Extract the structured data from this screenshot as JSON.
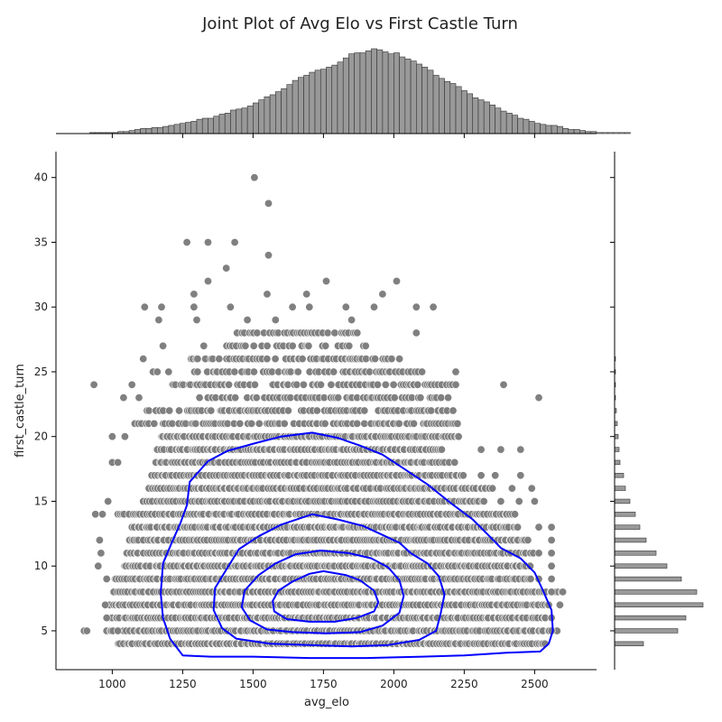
{
  "chart_data": {
    "type": "scatter",
    "title": "Joint Plot of Avg Elo vs First Castle Turn",
    "xlabel": "avg_elo",
    "ylabel": "first_castle_turn",
    "xlim": [
      800,
      2720
    ],
    "ylim": [
      2,
      42
    ],
    "x_ticks": [
      1000,
      1250,
      1500,
      1750,
      2000,
      2250,
      2500
    ],
    "y_ticks": [
      5,
      10,
      15,
      20,
      25,
      30,
      35,
      40
    ],
    "grid": false,
    "legend": "none",
    "colors": {
      "points": "#808080",
      "kde": "#0000ff",
      "hist_fill": "#999999",
      "hist_edge": "#333333"
    },
    "outliers": [
      {
        "x": 1505,
        "y": 40
      },
      {
        "x": 1555,
        "y": 38
      },
      {
        "x": 1265,
        "y": 35
      },
      {
        "x": 1340,
        "y": 35
      },
      {
        "x": 1435,
        "y": 35
      },
      {
        "x": 1555,
        "y": 34
      },
      {
        "x": 1405,
        "y": 33
      },
      {
        "x": 1340,
        "y": 32
      },
      {
        "x": 1760,
        "y": 32
      },
      {
        "x": 2010,
        "y": 32
      },
      {
        "x": 1290,
        "y": 31
      },
      {
        "x": 1550,
        "y": 31
      },
      {
        "x": 1690,
        "y": 31
      },
      {
        "x": 1960,
        "y": 31
      },
      {
        "x": 1115,
        "y": 30
      },
      {
        "x": 1175,
        "y": 30
      },
      {
        "x": 1290,
        "y": 30
      },
      {
        "x": 1420,
        "y": 30
      },
      {
        "x": 1640,
        "y": 30
      },
      {
        "x": 1700,
        "y": 30
      },
      {
        "x": 1830,
        "y": 30
      },
      {
        "x": 1930,
        "y": 30
      },
      {
        "x": 2080,
        "y": 30
      },
      {
        "x": 2140,
        "y": 30
      },
      {
        "x": 1165,
        "y": 29
      },
      {
        "x": 1300,
        "y": 29
      },
      {
        "x": 1480,
        "y": 29
      },
      {
        "x": 1580,
        "y": 29
      },
      {
        "x": 1850,
        "y": 29
      },
      {
        "x": 1180,
        "y": 27
      },
      {
        "x": 1325,
        "y": 27
      },
      {
        "x": 2080,
        "y": 28
      },
      {
        "x": 1110,
        "y": 26
      },
      {
        "x": 1145,
        "y": 25
      },
      {
        "x": 1200,
        "y": 25
      },
      {
        "x": 2220,
        "y": 25
      },
      {
        "x": 935,
        "y": 24
      },
      {
        "x": 1070,
        "y": 24
      },
      {
        "x": 2390,
        "y": 24
      },
      {
        "x": 2515,
        "y": 23
      },
      {
        "x": 1040,
        "y": 23
      },
      {
        "x": 1095,
        "y": 23
      },
      {
        "x": 1000,
        "y": 20
      },
      {
        "x": 1045,
        "y": 20
      },
      {
        "x": 1000,
        "y": 18
      },
      {
        "x": 1020,
        "y": 18
      },
      {
        "x": 2450,
        "y": 19
      },
      {
        "x": 2310,
        "y": 19
      },
      {
        "x": 2380,
        "y": 19
      },
      {
        "x": 2310,
        "y": 17
      },
      {
        "x": 2360,
        "y": 17
      },
      {
        "x": 2450,
        "y": 17
      },
      {
        "x": 2350,
        "y": 16
      },
      {
        "x": 2420,
        "y": 16
      },
      {
        "x": 2490,
        "y": 16
      },
      {
        "x": 2380,
        "y": 15
      },
      {
        "x": 2445,
        "y": 15
      },
      {
        "x": 2500,
        "y": 15
      },
      {
        "x": 985,
        "y": 15
      },
      {
        "x": 1160,
        "y": 25
      },
      {
        "x": 2560,
        "y": 13
      },
      {
        "x": 2560,
        "y": 12
      },
      {
        "x": 2560,
        "y": 11
      },
      {
        "x": 2560,
        "y": 10
      },
      {
        "x": 2560,
        "y": 9
      },
      {
        "x": 2560,
        "y": 8
      },
      {
        "x": 2560,
        "y": 6
      },
      {
        "x": 2560,
        "y": 5
      },
      {
        "x": 2590,
        "y": 7
      },
      {
        "x": 2515,
        "y": 9
      },
      {
        "x": 2515,
        "y": 11
      },
      {
        "x": 2515,
        "y": 13
      },
      {
        "x": 900,
        "y": 5
      },
      {
        "x": 910,
        "y": 5
      },
      {
        "x": 955,
        "y": 12
      },
      {
        "x": 960,
        "y": 11
      },
      {
        "x": 950,
        "y": 10
      },
      {
        "x": 980,
        "y": 9
      },
      {
        "x": 975,
        "y": 7
      },
      {
        "x": 980,
        "y": 6
      },
      {
        "x": 1020,
        "y": 5
      },
      {
        "x": 940,
        "y": 14
      },
      {
        "x": 965,
        "y": 14
      }
    ],
    "rows": [
      {
        "y": 4,
        "x_min": 1020,
        "x_max": 2540
      },
      {
        "y": 5,
        "x_min": 980,
        "x_max": 2580
      },
      {
        "y": 6,
        "x_min": 985,
        "x_max": 2540
      },
      {
        "y": 7,
        "x_min": 985,
        "x_max": 2550
      },
      {
        "y": 8,
        "x_min": 1005,
        "x_max": 2600
      },
      {
        "y": 9,
        "x_min": 1010,
        "x_max": 2490
      },
      {
        "y": 10,
        "x_min": 1040,
        "x_max": 2490
      },
      {
        "y": 11,
        "x_min": 1050,
        "x_max": 2500
      },
      {
        "y": 12,
        "x_min": 1060,
        "x_max": 2480
      },
      {
        "y": 13,
        "x_min": 1070,
        "x_max": 2440
      },
      {
        "y": 14,
        "x_min": 1020,
        "x_max": 2430
      },
      {
        "y": 15,
        "x_min": 1110,
        "x_max": 2320
      },
      {
        "y": 16,
        "x_min": 1130,
        "x_max": 2340
      },
      {
        "y": 17,
        "x_min": 1140,
        "x_max": 2250
      },
      {
        "y": 18,
        "x_min": 1150,
        "x_max": 2220
      },
      {
        "y": 19,
        "x_min": 1160,
        "x_max": 2170
      },
      {
        "y": 20,
        "x_min": 1170,
        "x_max": 2230
      },
      {
        "y": 21,
        "x_min": 1080,
        "x_max": 2230
      },
      {
        "y": 22,
        "x_min": 1120,
        "x_max": 2220
      },
      {
        "y": 23,
        "x_min": 1260,
        "x_max": 2200
      },
      {
        "y": 24,
        "x_min": 1210,
        "x_max": 2220
      },
      {
        "y": 25,
        "x_min": 1290,
        "x_max": 2100
      },
      {
        "y": 26,
        "x_min": 1280,
        "x_max": 2020
      },
      {
        "y": 27,
        "x_min": 1380,
        "x_max": 1900
      },
      {
        "y": 28,
        "x_min": 1440,
        "x_max": 1870
      }
    ],
    "kde_contours": [
      [
        [
          1710,
          20.3
        ],
        [
          1800,
          19.9
        ],
        [
          1880,
          19.3
        ],
        [
          1960,
          18.6
        ],
        [
          2030,
          17.6
        ],
        [
          2120,
          16.3
        ],
        [
          2200,
          14.9
        ],
        [
          2280,
          13.6
        ],
        [
          2340,
          12.3
        ],
        [
          2380,
          11.4
        ],
        [
          2450,
          10.6
        ],
        [
          2500,
          9.5
        ],
        [
          2530,
          8.1
        ],
        [
          2560,
          6.6
        ],
        [
          2565,
          5.0
        ],
        [
          2550,
          4.0
        ],
        [
          2520,
          3.4
        ],
        [
          2400,
          3.3
        ],
        [
          2250,
          3.1
        ],
        [
          2100,
          3.0
        ],
        [
          1900,
          2.9
        ],
        [
          1700,
          2.9
        ],
        [
          1500,
          3.0
        ],
        [
          1350,
          3.0
        ],
        [
          1250,
          3.1
        ],
        [
          1205,
          4.4
        ],
        [
          1180,
          6.0
        ],
        [
          1172,
          7.9
        ],
        [
          1180,
          10.2
        ],
        [
          1215,
          12.0
        ],
        [
          1240,
          13.2
        ],
        [
          1265,
          14.7
        ],
        [
          1275,
          16.5
        ],
        [
          1340,
          18.1
        ],
        [
          1410,
          18.9
        ],
        [
          1510,
          19.5
        ],
        [
          1600,
          20.0
        ],
        [
          1710,
          20.3
        ]
      ],
      [
        [
          1710,
          14.0
        ],
        [
          1800,
          13.6
        ],
        [
          1890,
          13.1
        ],
        [
          1950,
          12.5
        ],
        [
          2020,
          11.8
        ],
        [
          2060,
          11.0
        ],
        [
          2120,
          10.2
        ],
        [
          2160,
          9.2
        ],
        [
          2180,
          7.8
        ],
        [
          2165,
          6.2
        ],
        [
          2150,
          5.0
        ],
        [
          2090,
          4.3
        ],
        [
          1980,
          3.9
        ],
        [
          1850,
          3.8
        ],
        [
          1700,
          3.9
        ],
        [
          1560,
          4.0
        ],
        [
          1440,
          4.4
        ],
        [
          1390,
          5.2
        ],
        [
          1360,
          6.6
        ],
        [
          1365,
          8.3
        ],
        [
          1410,
          9.9
        ],
        [
          1450,
          11.3
        ],
        [
          1520,
          12.3
        ],
        [
          1600,
          13.2
        ],
        [
          1710,
          14.0
        ]
      ],
      [
        [
          1740,
          11.2
        ],
        [
          1840,
          11.0
        ],
        [
          1920,
          10.6
        ],
        [
          1980,
          9.9
        ],
        [
          2020,
          8.9
        ],
        [
          2035,
          7.7
        ],
        [
          2020,
          6.4
        ],
        [
          1960,
          5.4
        ],
        [
          1880,
          4.9
        ],
        [
          1760,
          4.8
        ],
        [
          1640,
          4.9
        ],
        [
          1550,
          5.1
        ],
        [
          1490,
          5.8
        ],
        [
          1460,
          6.8
        ],
        [
          1470,
          8.1
        ],
        [
          1520,
          9.3
        ],
        [
          1580,
          10.2
        ],
        [
          1650,
          10.9
        ],
        [
          1740,
          11.2
        ]
      ],
      [
        [
          1750,
          9.6
        ],
        [
          1830,
          9.3
        ],
        [
          1880,
          8.9
        ],
        [
          1930,
          8.1
        ],
        [
          1945,
          7.2
        ],
        [
          1930,
          6.5
        ],
        [
          1870,
          6.0
        ],
        [
          1790,
          5.7
        ],
        [
          1700,
          5.7
        ],
        [
          1620,
          5.9
        ],
        [
          1575,
          6.5
        ],
        [
          1570,
          7.3
        ],
        [
          1590,
          8.1
        ],
        [
          1640,
          8.8
        ],
        [
          1700,
          9.4
        ],
        [
          1750,
          9.6
        ]
      ]
    ],
    "hist_x": {
      "bin_start": 920,
      "bin_width": 20,
      "counts": [
        1,
        1,
        1,
        1,
        1,
        2,
        2,
        3,
        4,
        5,
        5,
        6,
        6,
        7,
        8,
        9,
        10,
        11,
        12,
        14,
        15,
        15,
        17,
        19,
        20,
        23,
        24,
        25,
        27,
        30,
        33,
        36,
        38,
        41,
        44,
        48,
        52,
        55,
        57,
        60,
        62,
        63,
        65,
        67,
        70,
        74,
        78,
        79,
        79,
        81,
        83,
        82,
        80,
        78,
        79,
        75,
        73,
        71,
        68,
        65,
        62,
        57,
        54,
        51,
        49,
        46,
        42,
        39,
        35,
        33,
        31,
        28,
        25,
        22,
        20,
        18,
        15,
        14,
        12,
        10,
        9,
        8,
        8,
        7,
        5,
        4,
        4,
        3,
        2,
        2,
        1,
        1,
        1,
        1,
        1,
        1
      ]
    },
    "hist_y": {
      "bins": [
        4,
        5,
        6,
        7,
        8,
        9,
        10,
        11,
        12,
        13,
        14,
        15,
        16,
        17,
        18,
        19,
        20,
        21,
        22,
        23,
        24,
        25,
        26
      ],
      "counts": [
        32,
        70,
        79,
        98,
        91,
        74,
        58,
        46,
        35,
        28,
        23,
        17,
        12,
        10,
        6,
        5,
        4,
        3,
        2,
        1,
        1,
        1,
        1
      ]
    }
  }
}
